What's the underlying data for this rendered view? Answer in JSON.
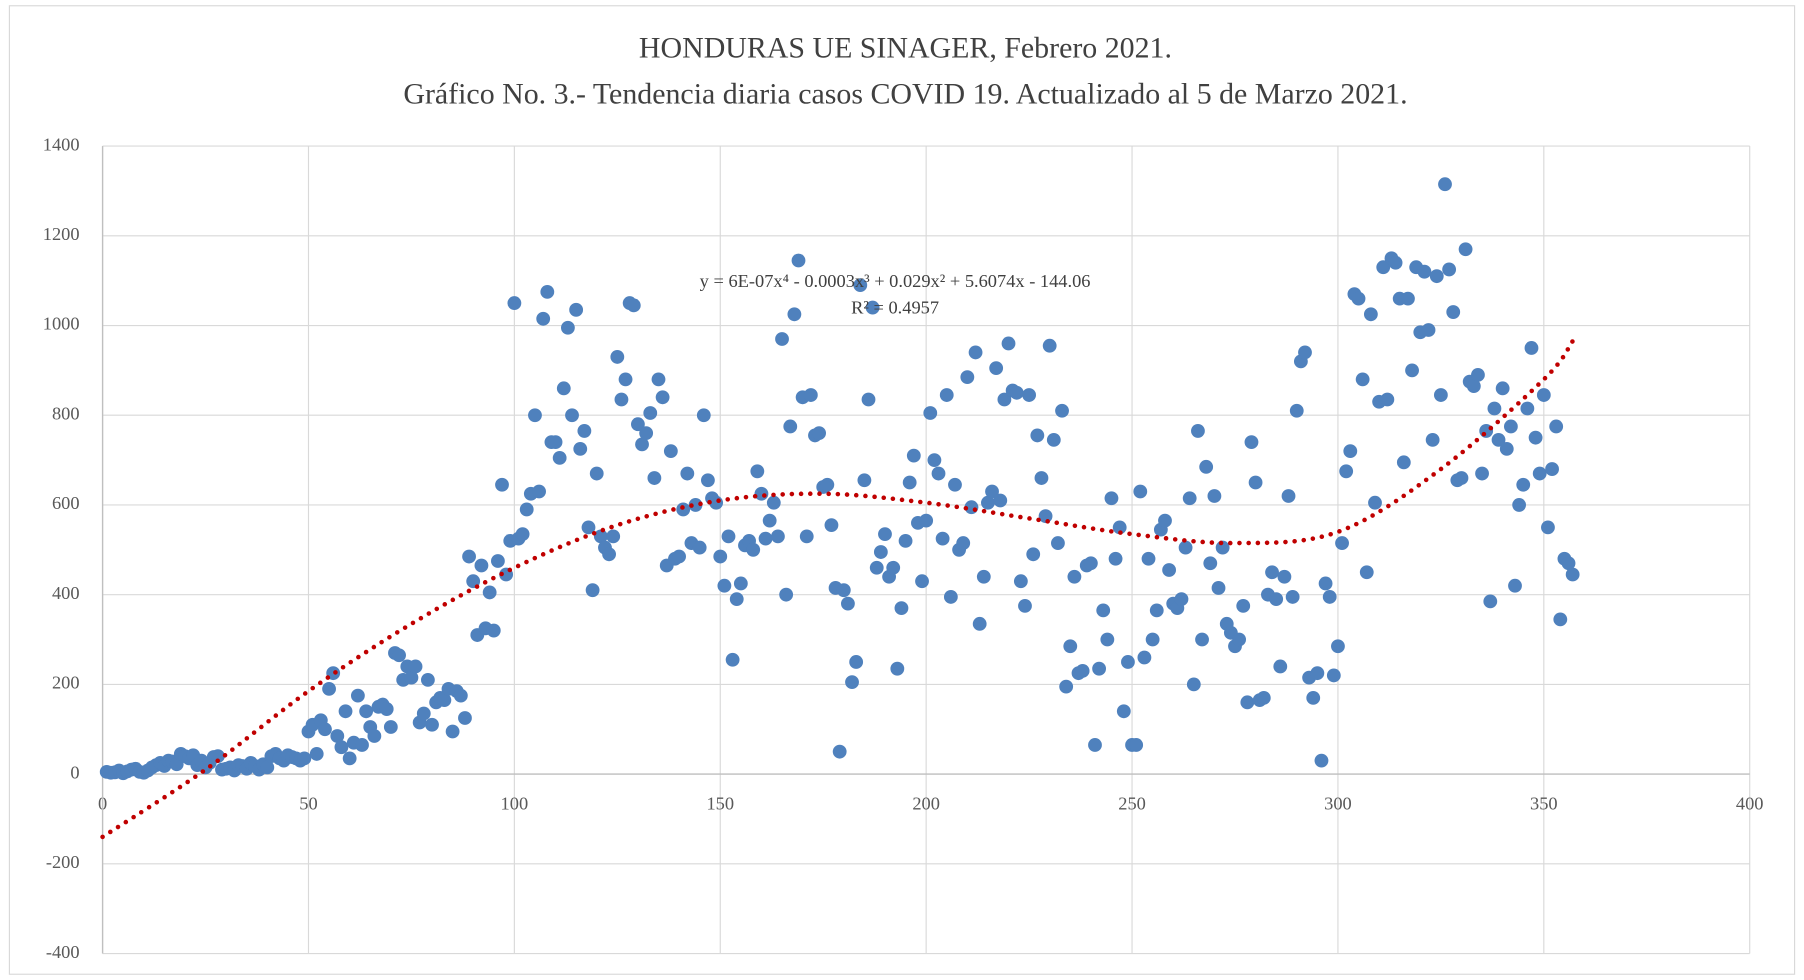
{
  "chart_data": {
    "type": "scatter",
    "title": "HONDURAS UE SINAGER, Febrero 2021.",
    "subtitle": "Gráfico No. 3.- Tendencia diaria casos COVID 19. Actualizado al 5 de Marzo 2021.",
    "annotations": [
      "y = 6E-07x⁴ - 0.0003x³ + 0.029x² + 5.6074x - 144.06",
      "R² = 0.4957"
    ],
    "color": "#4f81bd",
    "grid": true,
    "xlim": [
      0,
      400
    ],
    "xticks": [
      0,
      50,
      100,
      150,
      200,
      250,
      300,
      350,
      400
    ],
    "ylim": [
      -400,
      1400
    ],
    "yticks": [
      -400,
      -200,
      0,
      200,
      400,
      600,
      800,
      1000,
      1200,
      1400
    ],
    "x": [
      1,
      2,
      3,
      4,
      5,
      6,
      7,
      8,
      9,
      10,
      11,
      12,
      13,
      14,
      15,
      16,
      17,
      18,
      19,
      20,
      21,
      22,
      23,
      24,
      25,
      26,
      27,
      28,
      29,
      30,
      31,
      32,
      33,
      34,
      35,
      36,
      37,
      38,
      39,
      40,
      41,
      42,
      43,
      44,
      45,
      46,
      47,
      48,
      49,
      50,
      51,
      52,
      53,
      54,
      55,
      56,
      57,
      58,
      59,
      60,
      61,
      62,
      63,
      64,
      65,
      66,
      67,
      68,
      69,
      70,
      71,
      72,
      73,
      74,
      75,
      76,
      77,
      78,
      79,
      80,
      81,
      82,
      83,
      84,
      85,
      86,
      87,
      88,
      89,
      90,
      91,
      92,
      93,
      94,
      95,
      96,
      97,
      98,
      99,
      100,
      101,
      102,
      103,
      104,
      105,
      106,
      107,
      108,
      109,
      110,
      111,
      112,
      113,
      114,
      115,
      116,
      117,
      118,
      119,
      120,
      121,
      122,
      123,
      124,
      125,
      126,
      127,
      128,
      129,
      130,
      131,
      132,
      133,
      134,
      135,
      136,
      137,
      138,
      139,
      140,
      141,
      142,
      143,
      144,
      145,
      146,
      147,
      148,
      149,
      150,
      151,
      152,
      153,
      154,
      155,
      156,
      157,
      158,
      159,
      160,
      161,
      162,
      163,
      164,
      165,
      166,
      167,
      168,
      169,
      170,
      171,
      172,
      173,
      174,
      175,
      176,
      177,
      178,
      179,
      180,
      181,
      182,
      183,
      184,
      185,
      186,
      187,
      188,
      189,
      190,
      191,
      192,
      193,
      194,
      195,
      196,
      197,
      198,
      199,
      200,
      201,
      202,
      203,
      204,
      205,
      206,
      207,
      208,
      209,
      210,
      211,
      212,
      213,
      214,
      215,
      216,
      217,
      218,
      219,
      220,
      221,
      222,
      223,
      224,
      225,
      226,
      227,
      228,
      229,
      230,
      231,
      232,
      233,
      234,
      235,
      236,
      237,
      238,
      239,
      240,
      241,
      242,
      243,
      244,
      245,
      246,
      247,
      248,
      249,
      250,
      251,
      252,
      253,
      254,
      255,
      256,
      257,
      258,
      259,
      260,
      261,
      262,
      263,
      264,
      265,
      266,
      267,
      268,
      269,
      270,
      271,
      272,
      273,
      274,
      275,
      276,
      277,
      278,
      279,
      280,
      281,
      282,
      283,
      284,
      285,
      286,
      287,
      288,
      289,
      290,
      291,
      292,
      293,
      294,
      295,
      296,
      297,
      298,
      299,
      300,
      301,
      302,
      303,
      304,
      305,
      306,
      307,
      308,
      309,
      310,
      311,
      312,
      313,
      314,
      315,
      316,
      317,
      318,
      319,
      320,
      321,
      322,
      323,
      324,
      325,
      326,
      327,
      328,
      329,
      330,
      331,
      332,
      333,
      334,
      335,
      336,
      337,
      338,
      339,
      340,
      341,
      342,
      343,
      344,
      345,
      346,
      347,
      348,
      349,
      350,
      351,
      352,
      353,
      354,
      355,
      356,
      357
    ],
    "values": [
      5,
      3,
      4,
      8,
      2,
      6,
      10,
      12,
      5,
      3,
      8,
      15,
      20,
      25,
      18,
      30,
      28,
      22,
      45,
      40,
      35,
      42,
      20,
      30,
      15,
      25,
      38,
      40,
      10,
      12,
      15,
      8,
      20,
      18,
      12,
      25,
      18,
      10,
      22,
      15,
      40,
      45,
      35,
      30,
      42,
      38,
      35,
      30,
      35,
      95,
      110,
      45,
      120,
      100,
      190,
      225,
      85,
      60,
      140,
      35,
      70,
      175,
      65,
      140,
      105,
      85,
      150,
      155,
      145,
      105,
      270,
      265,
      210,
      240,
      215,
      240,
      115,
      135,
      210,
      110,
      160,
      170,
      165,
      190,
      95,
      185,
      175,
      125,
      485,
      430,
      310,
      465,
      325,
      405,
      320,
      475,
      645,
      445,
      520,
      1050,
      525,
      535,
      590,
      625,
      800,
      630,
      1015,
      1075,
      740,
      740,
      705,
      860,
      995,
      800,
      1035,
      725,
      765,
      550,
      410,
      670,
      530,
      505,
      490,
      530,
      930,
      835,
      880,
      1050,
      1045,
      780,
      735,
      760,
      805,
      660,
      880,
      840,
      465,
      720,
      480,
      485,
      590,
      670,
      515,
      600,
      505,
      800,
      655,
      615,
      605,
      485,
      420,
      530,
      255,
      390,
      425,
      510,
      520,
      500,
      675,
      625,
      525,
      565,
      605,
      530,
      970,
      400,
      775,
      1025,
      1145,
      840,
      530,
      845,
      755,
      760,
      640,
      645,
      555,
      415,
      50,
      410,
      380,
      205,
      250,
      1090,
      655,
      835,
      1040,
      460,
      495,
      535,
      440,
      460,
      235,
      370,
      520,
      650,
      710,
      560,
      430,
      565,
      805,
      700,
      670,
      525,
      845,
      395,
      645,
      500,
      515,
      885,
      595,
      940,
      335,
      440,
      605,
      630,
      905,
      610,
      835,
      960,
      855,
      850,
      430,
      375,
      845,
      490,
      755,
      660,
      575,
      955,
      745,
      515,
      810,
      195,
      285,
      440,
      225,
      230,
      465,
      470,
      65,
      235,
      365,
      300,
      615,
      480,
      550,
      140,
      250,
      65,
      65,
      630,
      260,
      480,
      300,
      365,
      545,
      565,
      455,
      380,
      370,
      390,
      505,
      615,
      200,
      765,
      300,
      685,
      470,
      620,
      415,
      505,
      335,
      315,
      285,
      300,
      375,
      160,
      740,
      650,
      165,
      170,
      400,
      450,
      390,
      240,
      440,
      620,
      395,
      810,
      920,
      940,
      215,
      170,
      225,
      30,
      425,
      395,
      220,
      285,
      515,
      675,
      720,
      1070,
      1060,
      880,
      450,
      1025,
      605,
      830,
      1130,
      835,
      1150,
      1140,
      1060,
      695,
      1060,
      900,
      1130,
      985,
      1120,
      990,
      745,
      1110,
      845,
      1315,
      1125,
      1030,
      655,
      660,
      1170,
      875,
      865,
      890,
      670,
      765,
      385,
      815,
      745,
      860,
      725,
      775,
      420,
      600,
      645,
      815,
      950,
      750,
      670,
      845,
      550,
      680,
      775,
      345,
      480,
      470,
      445
    ],
    "trendline": {
      "color": "#c00000",
      "x": [
        0,
        25,
        50,
        75,
        100,
        125,
        150,
        175,
        200,
        225,
        250,
        275,
        300,
        325,
        350,
        357
      ],
      "values": [
        -140,
        10,
        185,
        335,
        460,
        555,
        610,
        625,
        605,
        570,
        535,
        515,
        540,
        680,
        880,
        965
      ]
    }
  }
}
